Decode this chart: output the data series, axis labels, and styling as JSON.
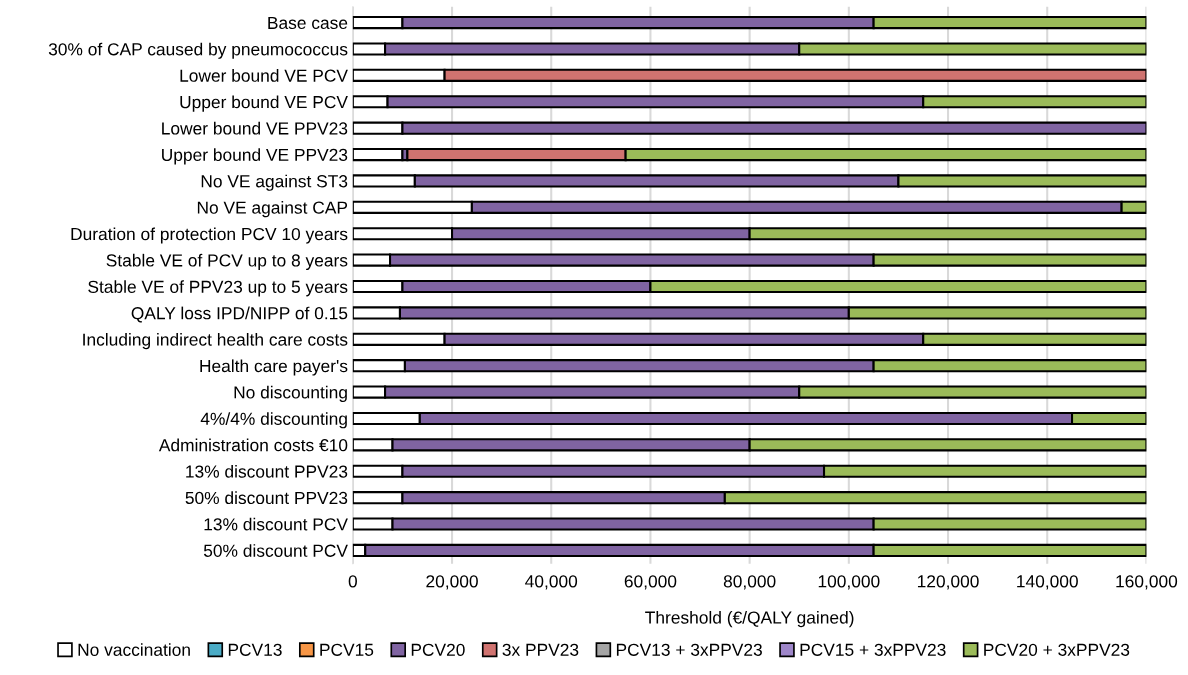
{
  "chart_data": {
    "type": "bar",
    "orientation": "horizontal",
    "stacked": true,
    "categories": [
      "Base case",
      "30% of CAP caused by pneumococcus",
      "Lower bound VE PCV",
      "Upper bound VE PCV",
      "Lower bound VE PPV23",
      "Upper bound VE PPV23",
      "No VE against ST3",
      "No VE against CAP",
      "Duration of protection PCV 10 years",
      "Stable VE of PCV up to 8 years",
      "Stable VE of PPV23 up to 5 years",
      "QALY loss IPD/NIPP of 0.15",
      "Including indirect health care costs",
      "Health care payer's",
      "No discounting",
      "4%/4% discounting",
      "Administration costs €10",
      "13% discount PPV23",
      "50% discount PPV23",
      "13% discount PCV",
      "50% discount PCV"
    ],
    "series": [
      {
        "name": "No vaccination",
        "color": "#ffffff",
        "values": [
          10000,
          6500,
          18500,
          7000,
          10000,
          10000,
          12500,
          24000,
          20000,
          7500,
          10000,
          9500,
          18500,
          10500,
          6500,
          13500,
          8000,
          10000,
          10000,
          8000,
          2500
        ]
      },
      {
        "name": "PCV13",
        "color": "#4bacc6",
        "values": [
          null,
          null,
          null,
          null,
          null,
          null,
          null,
          null,
          null,
          null,
          null,
          null,
          null,
          null,
          null,
          null,
          null,
          null,
          null,
          null,
          null
        ]
      },
      {
        "name": "PCV15",
        "color": "#f79646",
        "values": [
          null,
          null,
          null,
          null,
          null,
          null,
          null,
          null,
          null,
          null,
          null,
          null,
          null,
          null,
          null,
          null,
          null,
          null,
          null,
          null,
          null
        ]
      },
      {
        "name": "PCV20",
        "color": "#8064a2",
        "values": [
          95000,
          83500,
          null,
          108000,
          150000,
          1000,
          97500,
          131000,
          60000,
          97500,
          50000,
          90500,
          96500,
          94500,
          83500,
          131500,
          72000,
          85000,
          65000,
          97000,
          102500
        ]
      },
      {
        "name": "3x PPV23",
        "color": "#d07370",
        "values": [
          null,
          null,
          141500,
          null,
          null,
          44000,
          null,
          null,
          null,
          null,
          null,
          null,
          null,
          null,
          null,
          null,
          null,
          null,
          null,
          null,
          null
        ]
      },
      {
        "name": "PCV13 + 3xPPV23",
        "color": "#a5a5a5",
        "values": [
          null,
          null,
          null,
          null,
          null,
          null,
          null,
          null,
          null,
          null,
          null,
          null,
          null,
          null,
          null,
          null,
          null,
          null,
          null,
          null,
          null
        ]
      },
      {
        "name": "PCV15 + 3xPPV23",
        "color": "#9e86c9",
        "values": [
          null,
          null,
          null,
          null,
          null,
          null,
          null,
          null,
          null,
          null,
          null,
          null,
          null,
          null,
          null,
          null,
          null,
          null,
          null,
          null,
          null
        ]
      },
      {
        "name": "PCV20 + 3xPPV23",
        "color": "#9bbb59",
        "values": [
          55000,
          70000,
          null,
          45000,
          null,
          105000,
          50000,
          5000,
          80000,
          55000,
          100000,
          60000,
          45000,
          55000,
          70000,
          15000,
          80000,
          65000,
          85000,
          55000,
          55000
        ]
      }
    ],
    "xlabel": "Threshold (€/QALY gained)",
    "xlim": [
      0,
      160000
    ],
    "xticks": [
      0,
      {
        "value": 20000,
        "label": "20,000"
      },
      {
        "value": 40000,
        "label": "40,000"
      },
      {
        "value": 60000,
        "label": "60,000"
      },
      {
        "value": 80000,
        "label": "80,000"
      },
      {
        "value": 100000,
        "label": "100,000"
      },
      {
        "value": 120000,
        "label": "120,000"
      },
      {
        "value": 140000,
        "label": "140,000"
      },
      {
        "value": 160000,
        "label": "160,000"
      }
    ],
    "grid": "x",
    "legend": "bottom"
  }
}
